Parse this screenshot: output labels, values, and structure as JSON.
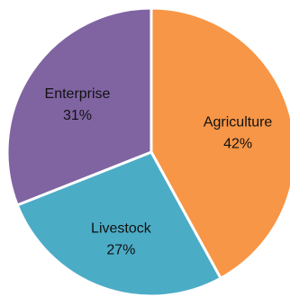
{
  "chart_data": {
    "type": "pie",
    "categories": [
      "Agriculture",
      "Livestock",
      "Enterprise"
    ],
    "values": [
      42,
      27,
      31
    ],
    "labels": [
      "42%",
      "27%",
      "31%"
    ],
    "colors": [
      "#F79646",
      "#4BACC6",
      "#8064A2"
    ],
    "legend": "none",
    "start_angle_deg": 0,
    "direction": "clockwise"
  }
}
